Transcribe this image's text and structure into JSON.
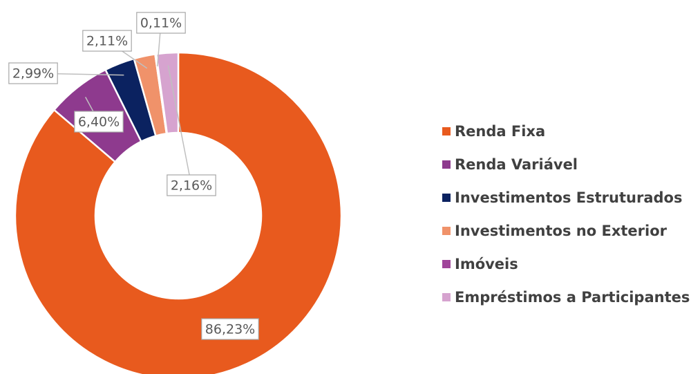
{
  "chart_data": {
    "type": "donut",
    "categories": [
      "Renda Fixa",
      "Renda Variável",
      "Investimentos Estruturados",
      "Investimentos no Exterior",
      "Imóveis",
      "Empréstimos a Participantes"
    ],
    "values": [
      86.23,
      6.4,
      2.99,
      2.11,
      0.11,
      2.16
    ],
    "value_labels": [
      "86,23%",
      "6,40%",
      "2,99%",
      "2,11%",
      "0,11%",
      "2,16%"
    ],
    "colors": [
      "#e85a1e",
      "#8e3a8e",
      "#0b2260",
      "#f0926a",
      "#a0459a",
      "#d6a3cf"
    ],
    "legend": "right"
  }
}
